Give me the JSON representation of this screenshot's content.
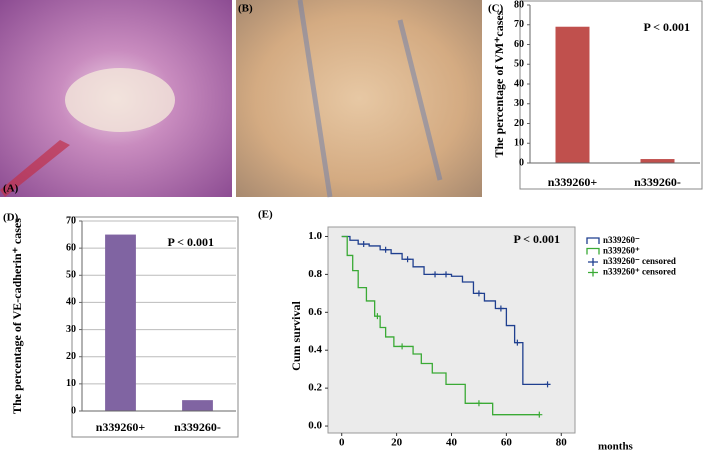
{
  "images": [
    {
      "label": "(A)"
    },
    {
      "label": "(B)"
    }
  ],
  "chart_data": [
    {
      "type": "bar",
      "label": "(C)",
      "y_label": "The percentage of VM⁺cases",
      "annotation": "P < 0.001",
      "categories": [
        "n339260+",
        "n339260-"
      ],
      "values": [
        69,
        2
      ],
      "color": "#c0504d",
      "ylim": [
        0,
        80
      ],
      "yticks": [
        0,
        10,
        20,
        30,
        40,
        50,
        60,
        70,
        80
      ],
      "grid": false
    },
    {
      "type": "bar",
      "label": "(D)",
      "y_label": "The percentage of VE-cadherin⁺ cases",
      "annotation": "P < 0.001",
      "categories": [
        "n339260+",
        "n339260-"
      ],
      "values": [
        65,
        4
      ],
      "color": "#8064a2",
      "ylim": [
        0,
        70
      ],
      "yticks": [
        0,
        10,
        20,
        30,
        40,
        50,
        60,
        70
      ],
      "grid": true
    },
    {
      "type": "survival",
      "label": "(E)",
      "y_label": "Cum survival",
      "x_label": "months",
      "annotation": "P < 0.001",
      "xlim": [
        -5,
        85
      ],
      "xticks": [
        0,
        20,
        40,
        60,
        80
      ],
      "ylim": [
        -0.1,
        1.05
      ],
      "yticks": [
        {
          "value": 0,
          "label": "0.0"
        },
        0.2,
        0.4,
        0.6,
        0.8,
        {
          "value": 1,
          "label": "1.0"
        }
      ],
      "series": [
        {
          "name": "n339260⁻",
          "color": "#1f3f8f",
          "style": "step",
          "x": [
            0,
            3,
            6,
            10,
            14,
            18,
            22,
            26,
            30,
            40,
            44,
            48,
            52,
            56,
            60,
            63,
            66,
            75
          ],
          "values": [
            1.0,
            0.98,
            0.96,
            0.95,
            0.93,
            0.91,
            0.88,
            0.84,
            0.8,
            0.79,
            0.76,
            0.7,
            0.66,
            0.62,
            0.53,
            0.44,
            0.22,
            0.22
          ]
        },
        {
          "name": "n339260⁺",
          "color": "#3aaa35",
          "style": "step",
          "x": [
            0,
            2,
            4,
            6,
            9,
            12,
            14,
            16,
            19,
            26,
            29,
            33,
            38,
            45,
            55,
            72
          ],
          "values": [
            1.0,
            0.9,
            0.82,
            0.73,
            0.66,
            0.58,
            0.52,
            0.47,
            0.42,
            0.38,
            0.33,
            0.28,
            0.22,
            0.12,
            0.06,
            0.06
          ]
        },
        {
          "name": "n339260⁻ censored",
          "color": "#1f3f8f",
          "style": "censor",
          "x": [
            8,
            16,
            24,
            34,
            38,
            50,
            58,
            64,
            75
          ],
          "values": [
            0.96,
            0.93,
            0.88,
            0.8,
            0.8,
            0.7,
            0.62,
            0.44,
            0.22
          ]
        },
        {
          "name": "n339260⁺ censored",
          "color": "#3aaa35",
          "style": "censor",
          "x": [
            13,
            22,
            50,
            72
          ],
          "values": [
            0.58,
            0.42,
            0.12,
            0.06
          ]
        }
      ]
    }
  ]
}
